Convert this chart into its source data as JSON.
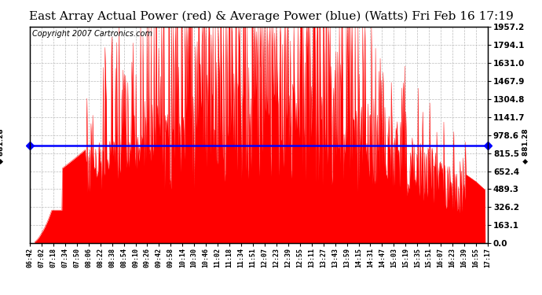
{
  "title": "East Array Actual Power (red) & Average Power (blue) (Watts) Fri Feb 16 17:19",
  "copyright": "Copyright 2007 Cartronics.com",
  "average_power": 881.28,
  "y_max": 1957.2,
  "y_min": 0.0,
  "yticks": [
    0.0,
    163.1,
    326.2,
    489.3,
    652.4,
    815.5,
    978.6,
    1141.7,
    1304.8,
    1467.9,
    1631.0,
    1794.1,
    1957.2
  ],
  "fill_color": "#FF0000",
  "line_color": "#0000FF",
  "background_color": "#FFFFFF",
  "grid_color": "#AAAAAA",
  "title_fontsize": 11,
  "copyright_fontsize": 7,
  "xtick_labels": [
    "06:42",
    "07:02",
    "07:18",
    "07:34",
    "07:50",
    "08:06",
    "08:22",
    "08:38",
    "08:54",
    "09:10",
    "09:26",
    "09:42",
    "09:58",
    "10:14",
    "10:30",
    "10:46",
    "11:02",
    "11:18",
    "11:34",
    "11:51",
    "12:07",
    "12:23",
    "12:39",
    "12:55",
    "13:11",
    "13:27",
    "13:43",
    "13:59",
    "14:15",
    "14:31",
    "14:47",
    "15:03",
    "15:19",
    "15:35",
    "15:51",
    "16:07",
    "16:23",
    "16:39",
    "16:55",
    "17:17"
  ]
}
